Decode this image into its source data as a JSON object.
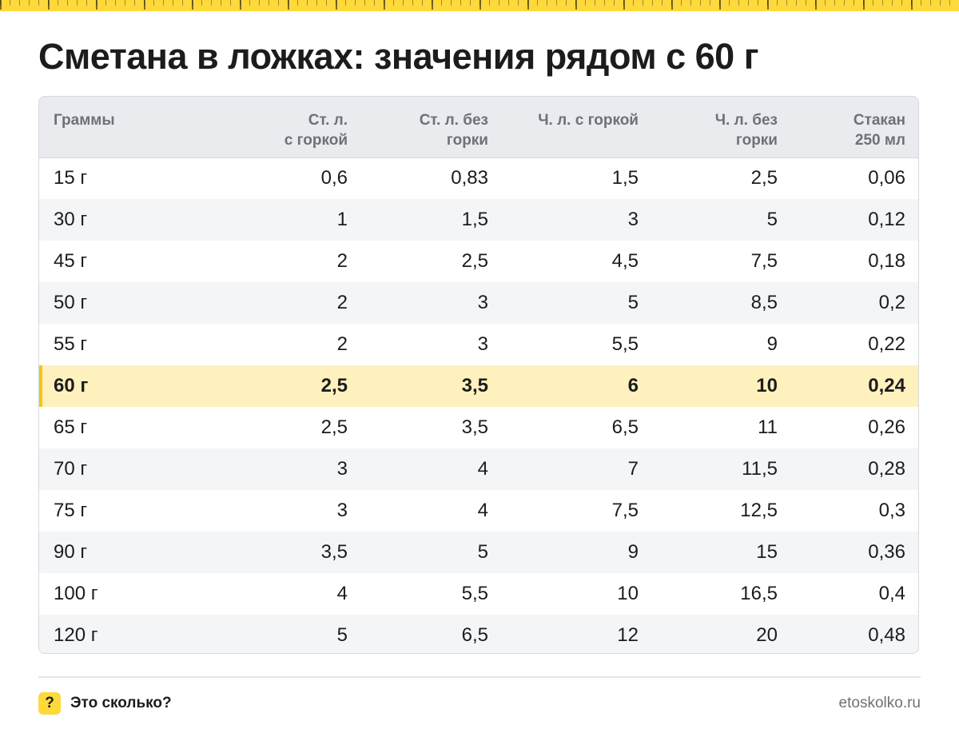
{
  "title": "Сметана в ложках: значения рядом с 60 г",
  "accent_color": "#fdd93b",
  "highlight_color": "#fff1bd",
  "table": {
    "headers": [
      {
        "line1": "Граммы",
        "line2": ""
      },
      {
        "line1": "Ст. л.",
        "line2": "с горкой"
      },
      {
        "line1": "Ст. л. без",
        "line2": "горки"
      },
      {
        "line1": "Ч. л. с горкой",
        "line2": ""
      },
      {
        "line1": "Ч. л. без",
        "line2": "горки"
      },
      {
        "line1": "Стакан",
        "line2": "250 мл"
      }
    ],
    "highlighted_row": 5,
    "rows": [
      [
        "15 г",
        "0,6",
        "0,83",
        "1,5",
        "2,5",
        "0,06"
      ],
      [
        "30 г",
        "1",
        "1,5",
        "3",
        "5",
        "0,12"
      ],
      [
        "45 г",
        "2",
        "2,5",
        "4,5",
        "7,5",
        "0,18"
      ],
      [
        "50 г",
        "2",
        "3",
        "5",
        "8,5",
        "0,2"
      ],
      [
        "55 г",
        "2",
        "3",
        "5,5",
        "9",
        "0,22"
      ],
      [
        "60 г",
        "2,5",
        "3,5",
        "6",
        "10",
        "0,24"
      ],
      [
        "65 г",
        "2,5",
        "3,5",
        "6,5",
        "11",
        "0,26"
      ],
      [
        "70 г",
        "3",
        "4",
        "7",
        "11,5",
        "0,28"
      ],
      [
        "75 г",
        "3",
        "4",
        "7,5",
        "12,5",
        "0,3"
      ],
      [
        "90 г",
        "3,5",
        "5",
        "9",
        "15",
        "0,36"
      ],
      [
        "100 г",
        "4",
        "5,5",
        "10",
        "16,5",
        "0,4"
      ],
      [
        "120 г",
        "5",
        "6,5",
        "12",
        "20",
        "0,48"
      ]
    ]
  },
  "footer": {
    "badge": "?",
    "brand": "Это сколько?",
    "site": "etoskolko.ru"
  }
}
